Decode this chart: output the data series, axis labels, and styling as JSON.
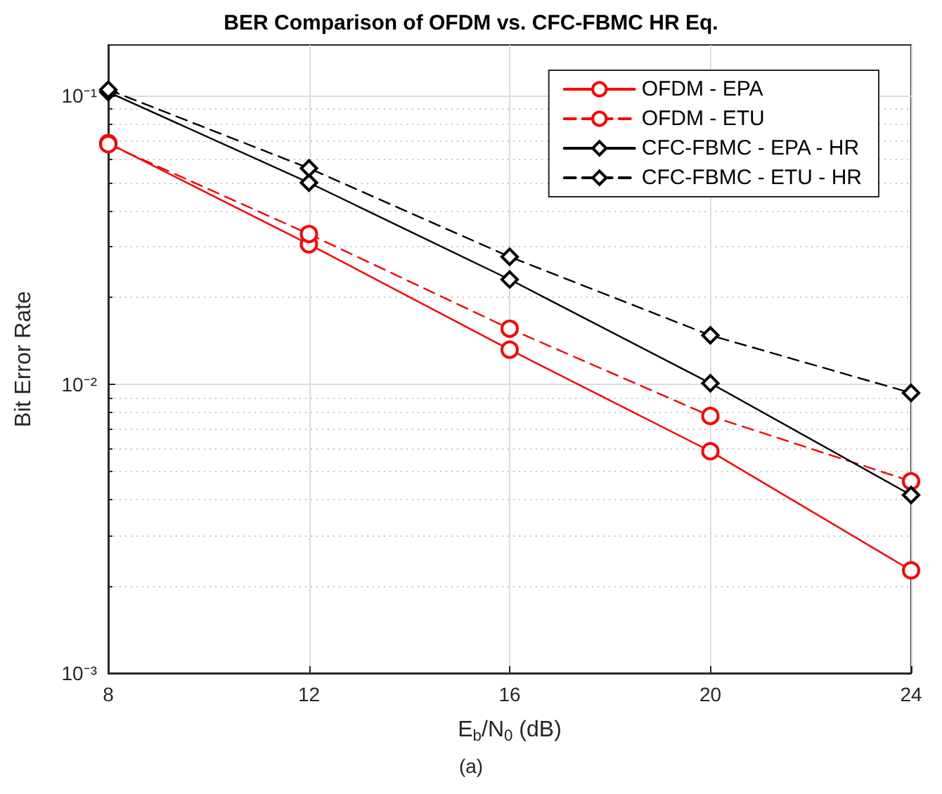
{
  "chart_data": {
    "type": "line",
    "title": "BER Comparison of OFDM vs. CFC-FBMC HR Eq.",
    "xlabel": "E$_{b}$/N$_{0}$ (dB)",
    "ylabel": "Bit Error Rate",
    "annotations": [
      "(a)"
    ],
    "x": [
      8,
      12,
      16,
      20,
      24
    ],
    "series": [
      {
        "name": "OFDM - EPA",
        "color": "#ff0000",
        "marker": "circle",
        "line_style": "solid",
        "values": [
          0.0686,
          0.0306,
          0.0132,
          0.00587,
          0.00227
        ]
      },
      {
        "name": "OFDM - ETU",
        "color": "#ff0000",
        "marker": "circle",
        "line_style": "dashed",
        "values": [
          0.068,
          0.0332,
          0.0156,
          0.00778,
          0.00462
        ]
      },
      {
        "name": "CFC-FBMC - EPA - HR",
        "color": "#000000",
        "marker": "diamond",
        "line_style": "solid",
        "values": [
          0.103,
          0.05,
          0.0231,
          0.0101,
          0.00414
        ]
      },
      {
        "name": "CFC-FBMC - ETU - HR",
        "color": "#000000",
        "marker": "diamond",
        "line_style": "dashed",
        "values": [
          0.105,
          0.0561,
          0.0277,
          0.0148,
          0.00935
        ]
      }
    ],
    "log": "y",
    "xlim": [
      8,
      24
    ],
    "xticks": [
      8,
      12,
      16,
      20,
      24
    ],
    "ylim": [
      0.001,
      0.15
    ],
    "yticks": [
      {
        "value": 0.001,
        "label": "10⁻³"
      },
      {
        "value": 0.01,
        "label": "10⁻²"
      },
      {
        "value": 0.1,
        "label": "10⁻¹"
      }
    ],
    "grid": true,
    "legend": "top right"
  }
}
